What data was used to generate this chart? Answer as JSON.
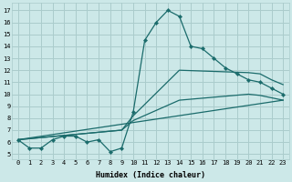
{
  "xlabel": "Humidex (Indice chaleur)",
  "xlim": [
    -0.5,
    23.5
  ],
  "ylim": [
    4.6,
    17.6
  ],
  "xticks": [
    0,
    1,
    2,
    3,
    4,
    5,
    6,
    7,
    8,
    9,
    10,
    11,
    12,
    13,
    14,
    15,
    16,
    17,
    18,
    19,
    20,
    21,
    22,
    23
  ],
  "yticks": [
    5,
    6,
    7,
    8,
    9,
    10,
    11,
    12,
    13,
    14,
    15,
    16,
    17
  ],
  "background_color": "#cce8e8",
  "grid_color": "#aacccc",
  "line_color": "#1a6b6b",
  "curve1_x": [
    0,
    1,
    2,
    3,
    4,
    5,
    6,
    7,
    8,
    9,
    10,
    11,
    12,
    13,
    14,
    15,
    16,
    17,
    18,
    19,
    20,
    21,
    22,
    23
  ],
  "curve1_y": [
    6.2,
    5.5,
    5.5,
    6.2,
    6.5,
    6.5,
    6.0,
    6.2,
    5.2,
    5.5,
    8.5,
    14.5,
    16.0,
    17.0,
    16.5,
    14.0,
    13.8,
    13.0,
    12.2,
    11.7,
    11.2,
    11.0,
    10.5,
    10.0
  ],
  "curve2_x": [
    0,
    9,
    10,
    14,
    20,
    21,
    22,
    23
  ],
  "curve2_y": [
    6.2,
    7.0,
    8.2,
    12.0,
    11.8,
    11.7,
    11.2,
    10.8
  ],
  "curve3_x": [
    0,
    9,
    10,
    14,
    20,
    21,
    22,
    23
  ],
  "curve3_y": [
    6.2,
    7.0,
    7.8,
    9.5,
    10.0,
    9.9,
    9.7,
    9.5
  ],
  "curve4_x": [
    0,
    23
  ],
  "curve4_y": [
    6.2,
    9.5
  ]
}
